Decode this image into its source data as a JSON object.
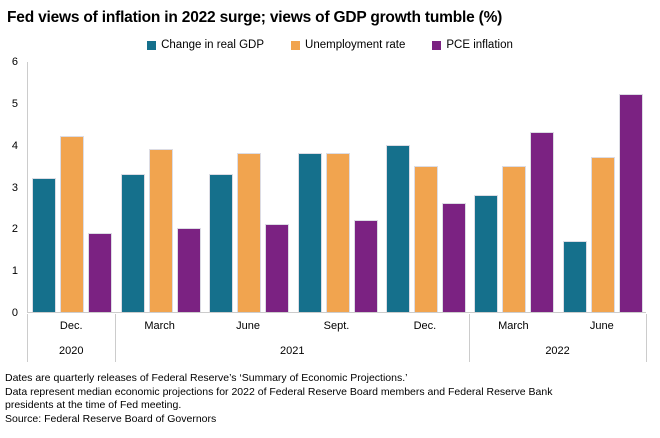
{
  "title": "Fed views of inflation in 2022 surge; views of GDP growth tumble (%)",
  "chart_data": {
    "type": "bar",
    "title": "Fed views of inflation in 2022 surge; views of GDP growth tumble (%)",
    "xlabel": "",
    "ylabel": "",
    "ylim": [
      0,
      6
    ],
    "yticks": [
      0,
      1,
      2,
      3,
      4,
      5,
      6
    ],
    "grid": false,
    "legend_position": "top-center",
    "categories": [
      "Dec.",
      "March",
      "June",
      "Sept.",
      "Dec.",
      "March",
      "June"
    ],
    "year_groups": [
      {
        "label": "2020",
        "count": 1
      },
      {
        "label": "2021",
        "count": 4
      },
      {
        "label": "2022",
        "count": 2
      }
    ],
    "series": [
      {
        "name": "Change in real GDP",
        "color": "#15708c",
        "values": [
          3.2,
          3.3,
          3.3,
          3.8,
          4.0,
          2.8,
          1.7
        ]
      },
      {
        "name": "Unemployment rate",
        "color": "#f1a44f",
        "values": [
          4.2,
          3.9,
          3.8,
          3.8,
          3.5,
          3.5,
          3.7
        ]
      },
      {
        "name": "PCE inflation",
        "color": "#7b2282",
        "values": [
          1.9,
          2.0,
          2.1,
          2.2,
          2.6,
          4.3,
          5.2
        ]
      }
    ],
    "axis_color": "#cccccc",
    "bar_stroke_color": "#dcdce4"
  },
  "footer": {
    "line1": "Dates are quarterly releases of Federal Reserve’s ‘Summary of Economic Projections.’",
    "line2": "Data represent median economic projections for 2022 of Federal Reserve Board members and Federal Reserve Bank presidents at the time of Fed meeting.",
    "line3": "Source: Federal Reserve Board of Governors"
  }
}
